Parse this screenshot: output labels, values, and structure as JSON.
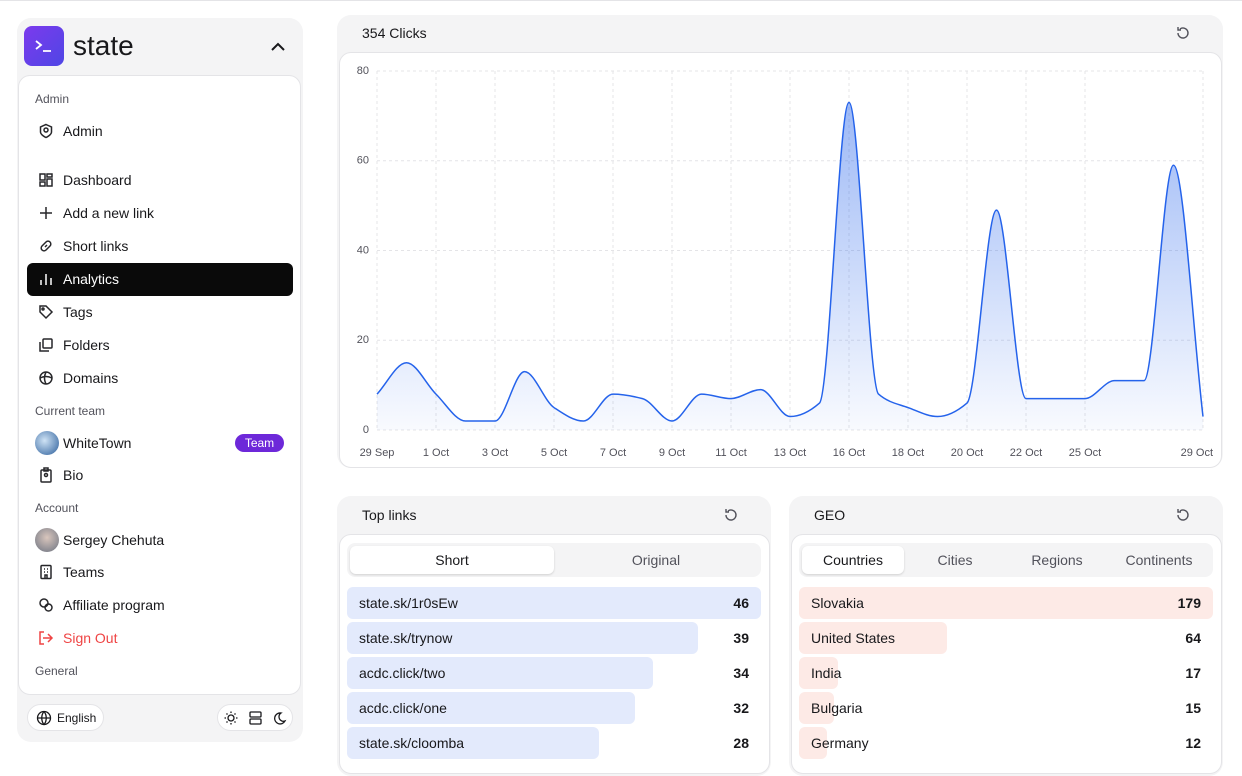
{
  "sidebar": {
    "brand": "state",
    "admin_heading": "Admin",
    "admin_items": [
      "Admin"
    ],
    "main_items": [
      "Dashboard",
      "Add a new link",
      "Short links",
      "Analytics",
      "Tags",
      "Folders",
      "Domains"
    ],
    "team_heading": "Current team",
    "team_items": [
      "WhiteTown",
      "Bio"
    ],
    "team_badge": "Team",
    "account_heading": "Account",
    "account_items": [
      "Sergey Chehuta",
      "Teams",
      "Affiliate program",
      "Sign Out"
    ],
    "general_heading": "General",
    "language": "English"
  },
  "chart_data": {
    "type": "area",
    "title": "354 Clicks",
    "categories": [
      "29 Sep",
      null,
      "1 Oct",
      null,
      "3 Oct",
      null,
      "5 Oct",
      null,
      "7 Oct",
      null,
      "9 Oct",
      null,
      "11 Oct",
      null,
      "13 Oct",
      null,
      "16 Oct",
      null,
      "18 Oct",
      null,
      "20 Oct",
      null,
      "22 Oct",
      null,
      "25 Oct",
      null,
      null,
      null,
      "29 Oct"
    ],
    "values": [
      8,
      15,
      8,
      2,
      2,
      13,
      5,
      2,
      8,
      7,
      2,
      8,
      7,
      9,
      3,
      6,
      73,
      8,
      5,
      3,
      6,
      49,
      7,
      7,
      7,
      11,
      11,
      59,
      3
    ],
    "color": "#2563eb",
    "ylim": [
      0,
      80
    ],
    "yticks": [
      0,
      20,
      40,
      60,
      80
    ],
    "grid": true
  },
  "top_links": {
    "title": "Top links",
    "tabs": [
      "Short",
      "Original"
    ],
    "rows": [
      {
        "label": "state.sk/1r0sEw",
        "value": 46
      },
      {
        "label": "state.sk/trynow",
        "value": 39
      },
      {
        "label": "acdc.click/two",
        "value": 34
      },
      {
        "label": "acdc.click/one",
        "value": 32
      },
      {
        "label": "state.sk/cloomba",
        "value": 28
      }
    ]
  },
  "geo": {
    "title": "GEO",
    "tabs": [
      "Countries",
      "Cities",
      "Regions",
      "Continents"
    ],
    "rows": [
      {
        "label": "Slovakia",
        "value": 179
      },
      {
        "label": "United States",
        "value": 64
      },
      {
        "label": "India",
        "value": 17
      },
      {
        "label": "Bulgaria",
        "value": 15
      },
      {
        "label": "Germany",
        "value": 12
      }
    ]
  }
}
